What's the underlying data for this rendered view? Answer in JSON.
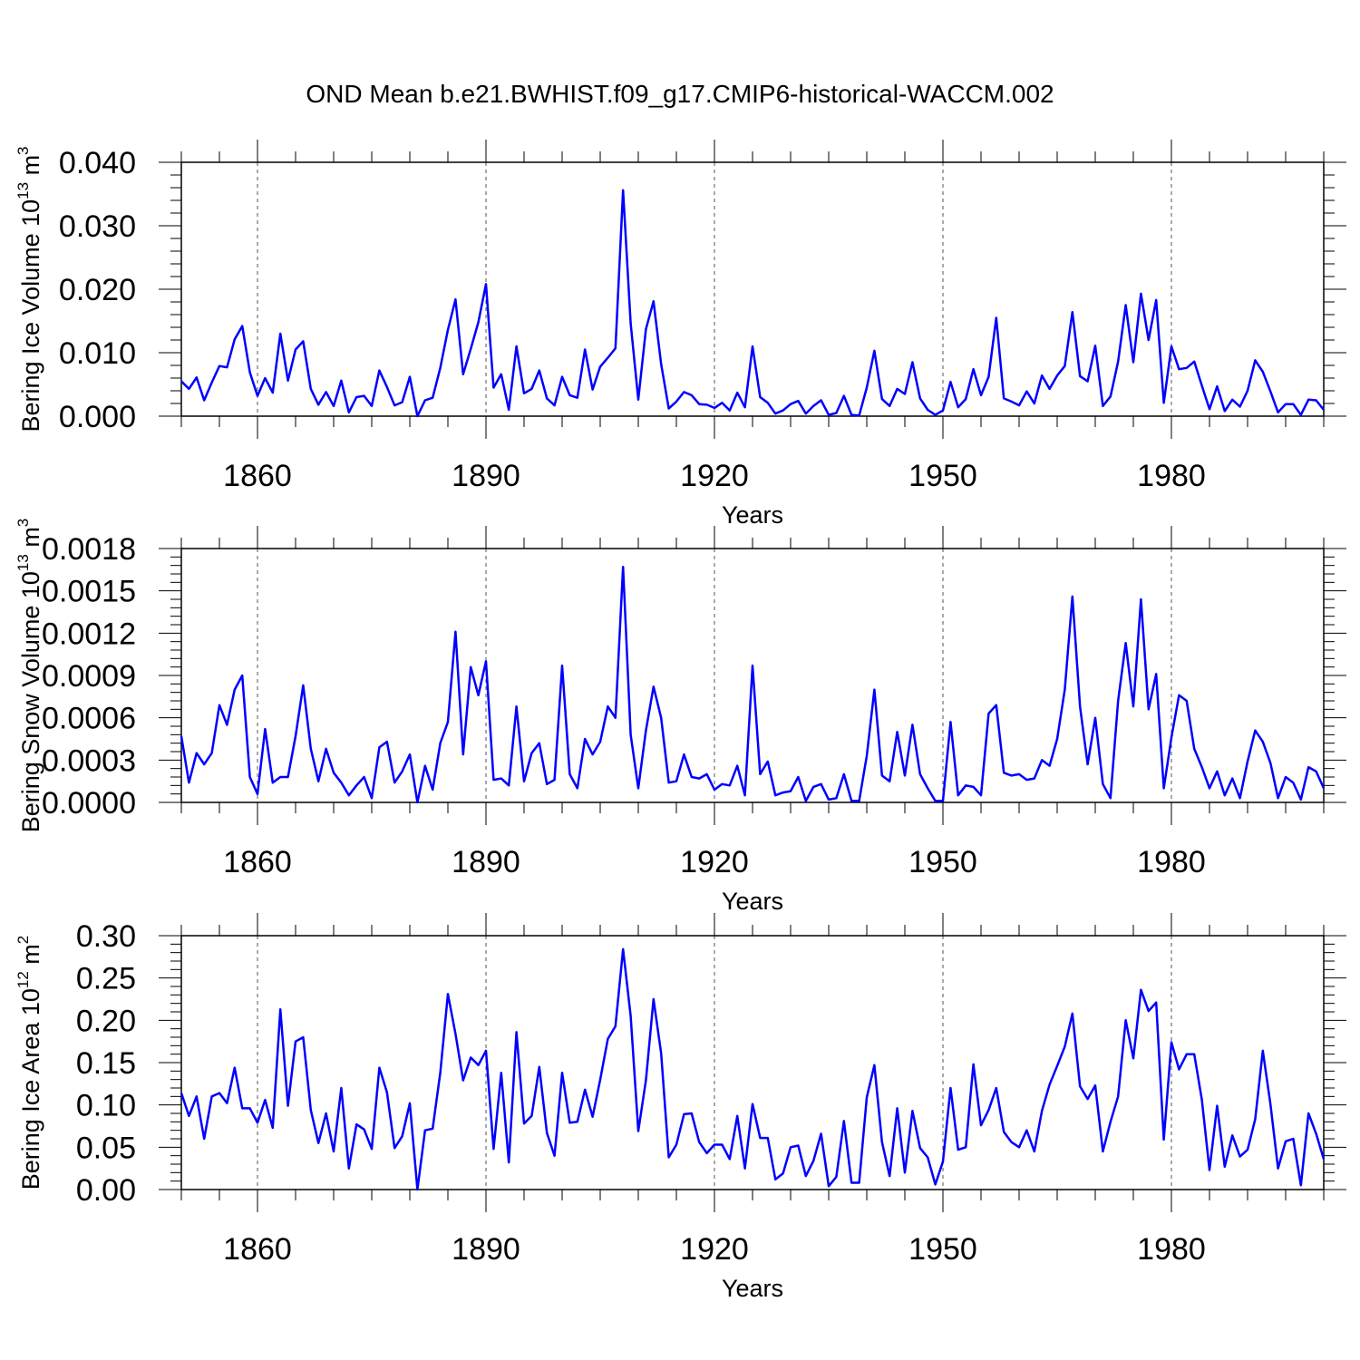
{
  "title": "OND Mean b.e21.BWHIST.f09_g17.CMIP6-historical-WACCM.002",
  "colors": {
    "line": "#0000ff",
    "axis": "#000000",
    "grid": "#555555"
  },
  "chart_data": [
    {
      "type": "line",
      "title": "OND Mean b.e21.BWHIST.f09_g17.CMIP6-historical-WACCM.002",
      "xlabel": "Years",
      "ylabel": {
        "main": "Bering Ice Volume 10",
        "sup": "13",
        "unit": " m",
        "unit_sup": "3"
      },
      "xlim": [
        1850,
        2000
      ],
      "ylim": [
        0,
        0.04
      ],
      "xticks": [
        1860,
        1890,
        1920,
        1950,
        1980
      ],
      "xtick_labels": [
        "1860",
        "1890",
        "1920",
        "1950",
        "1980"
      ],
      "yticks": [
        0,
        0.01,
        0.02,
        0.03,
        0.04
      ],
      "ytick_labels": [
        "0.000",
        "0.010",
        "0.020",
        "0.030",
        "0.040"
      ],
      "grid": "vertical dashed at major x ticks",
      "x_start": 1850,
      "series": [
        {
          "name": "Bering Ice Volume",
          "values": [
            0.0055,
            0.0043,
            0.0061,
            0.0025,
            0.0053,
            0.0079,
            0.0077,
            0.0121,
            0.0142,
            0.0069,
            0.0032,
            0.006,
            0.0037,
            0.013,
            0.0056,
            0.0105,
            0.0118,
            0.0043,
            0.0018,
            0.0038,
            0.0016,
            0.0056,
            0.0006,
            0.003,
            0.0032,
            0.0016,
            0.0072,
            0.0046,
            0.0017,
            0.0022,
            0.0062,
            0.0,
            0.0025,
            0.0029,
            0.0076,
            0.0136,
            0.0184,
            0.0066,
            0.0106,
            0.0148,
            0.0208,
            0.0045,
            0.0066,
            0.001,
            0.011,
            0.0036,
            0.0043,
            0.0072,
            0.0028,
            0.0017,
            0.0062,
            0.0033,
            0.0029,
            0.0105,
            0.0042,
            0.0078,
            0.0092,
            0.0107,
            0.0356,
            0.0146,
            0.0026,
            0.0137,
            0.0181,
            0.0082,
            0.0012,
            0.0023,
            0.0038,
            0.0033,
            0.0019,
            0.0018,
            0.0013,
            0.0021,
            0.0009,
            0.0037,
            0.0014,
            0.011,
            0.003,
            0.0021,
            0.0004,
            0.0009,
            0.0019,
            0.0024,
            0.0004,
            0.0016,
            0.0025,
            0.0002,
            0.0005,
            0.0032,
            0.0002,
            0.0001,
            0.0045,
            0.0103,
            0.0027,
            0.0016,
            0.0043,
            0.0035,
            0.0085,
            0.0028,
            0.001,
            0.0002,
            0.0009,
            0.0054,
            0.0014,
            0.0027,
            0.0074,
            0.0033,
            0.0062,
            0.0155,
            0.0028,
            0.0023,
            0.0017,
            0.0039,
            0.002,
            0.0064,
            0.0043,
            0.0064,
            0.0079,
            0.0164,
            0.0063,
            0.0055,
            0.0111,
            0.0016,
            0.0031,
            0.0086,
            0.0175,
            0.0085,
            0.0193,
            0.012,
            0.0183,
            0.0021,
            0.011,
            0.0074,
            0.0076,
            0.0086,
            0.0048,
            0.0011,
            0.0047,
            0.0008,
            0.0026,
            0.0015,
            0.004,
            0.0088,
            0.007,
            0.0039,
            0.0006,
            0.0019,
            0.0019,
            0.0002,
            0.0026,
            0.0025,
            0.001
          ]
        }
      ]
    },
    {
      "type": "line",
      "xlabel": "Years",
      "ylabel": {
        "main": "Bering Snow Volume 10",
        "sup": "13",
        "unit": " m",
        "unit_sup": "3"
      },
      "xlim": [
        1850,
        2000
      ],
      "ylim": [
        0,
        0.0018
      ],
      "xticks": [
        1860,
        1890,
        1920,
        1950,
        1980
      ],
      "xtick_labels": [
        "1860",
        "1890",
        "1920",
        "1950",
        "1980"
      ],
      "yticks": [
        0,
        0.0003,
        0.0006,
        0.0009,
        0.0012,
        0.0015,
        0.0018
      ],
      "ytick_labels": [
        "0.0000",
        "0.0003",
        "0.0006",
        "0.0009",
        "0.0012",
        "0.0015",
        "0.0018"
      ],
      "grid": "vertical dashed at major x ticks",
      "x_start": 1850,
      "series": [
        {
          "name": "Bering Snow Volume",
          "values": [
            0.00047,
            0.00014,
            0.00035,
            0.00027,
            0.00035,
            0.00069,
            0.00055,
            0.0008,
            0.0009,
            0.00018,
            6e-05,
            0.00052,
            0.00014,
            0.00018,
            0.00018,
            0.00047,
            0.00083,
            0.00038,
            0.00015,
            0.00038,
            0.00021,
            0.00014,
            5e-05,
            0.00012,
            0.00018,
            3e-05,
            0.00039,
            0.00043,
            0.00014,
            0.00022,
            0.00034,
            0.0,
            0.00026,
            9e-05,
            0.00042,
            0.00057,
            0.00121,
            0.00034,
            0.00096,
            0.00076,
            0.001,
            0.00016,
            0.00017,
            0.00012,
            0.00068,
            0.00015,
            0.00035,
            0.00042,
            0.00013,
            0.00016,
            0.00097,
            0.0002,
            0.0001,
            0.00045,
            0.00034,
            0.00043,
            0.00068,
            0.0006,
            0.00167,
            0.00048,
            0.0001,
            0.00051,
            0.00082,
            0.0006,
            0.00014,
            0.00015,
            0.00034,
            0.00018,
            0.00017,
            0.0002,
            9e-05,
            0.00013,
            0.00012,
            0.00026,
            5e-05,
            0.00097,
            0.0002,
            0.00029,
            5e-05,
            7e-05,
            8e-05,
            0.00018,
            1e-05,
            0.00011,
            0.00013,
            2e-05,
            3e-05,
            0.0002,
            1e-05,
            1e-05,
            0.00033,
            0.0008,
            0.00019,
            0.00015,
            0.0005,
            0.00019,
            0.00055,
            0.0002,
            0.0001,
            1e-05,
            1e-05,
            0.00057,
            5e-05,
            0.00012,
            0.00011,
            5e-05,
            0.00063,
            0.00069,
            0.00021,
            0.00019,
            0.0002,
            0.00016,
            0.00017,
            0.0003,
            0.00026,
            0.00045,
            0.0008,
            0.00146,
            0.00068,
            0.00027,
            0.0006,
            0.00013,
            3e-05,
            0.00072,
            0.00113,
            0.00068,
            0.00144,
            0.00066,
            0.00091,
            0.0001,
            0.00046,
            0.00076,
            0.00072,
            0.00038,
            0.00025,
            0.0001,
            0.00022,
            5e-05,
            0.00017,
            3e-05,
            0.00029,
            0.00051,
            0.00043,
            0.00028,
            3e-05,
            0.00018,
            0.00014,
            2e-05,
            0.00025,
            0.00022,
            0.0001
          ]
        }
      ]
    },
    {
      "type": "line",
      "xlabel": "Years",
      "ylabel": {
        "main": "Bering Ice Area 10",
        "sup": "12",
        "unit": " m",
        "unit_sup": "2"
      },
      "xlim": [
        1850,
        2000
      ],
      "ylim": [
        0,
        0.3
      ],
      "xticks": [
        1860,
        1890,
        1920,
        1950,
        1980
      ],
      "xtick_labels": [
        "1860",
        "1890",
        "1920",
        "1950",
        "1980"
      ],
      "yticks": [
        0,
        0.05,
        0.1,
        0.15,
        0.2,
        0.25,
        0.3
      ],
      "ytick_labels": [
        "0.00",
        "0.05",
        "0.10",
        "0.15",
        "0.20",
        "0.25",
        "0.30"
      ],
      "grid": "vertical dashed at major x ticks",
      "x_start": 1850,
      "series": [
        {
          "name": "Bering Ice Area",
          "values": [
            0.114,
            0.087,
            0.11,
            0.06,
            0.11,
            0.114,
            0.102,
            0.144,
            0.096,
            0.096,
            0.079,
            0.106,
            0.073,
            0.213,
            0.099,
            0.175,
            0.18,
            0.094,
            0.055,
            0.09,
            0.045,
            0.12,
            0.025,
            0.077,
            0.071,
            0.048,
            0.144,
            0.115,
            0.049,
            0.063,
            0.102,
            0.0,
            0.07,
            0.072,
            0.138,
            0.231,
            0.184,
            0.129,
            0.156,
            0.147,
            0.164,
            0.048,
            0.138,
            0.032,
            0.186,
            0.078,
            0.087,
            0.145,
            0.067,
            0.04,
            0.138,
            0.079,
            0.08,
            0.118,
            0.086,
            0.13,
            0.178,
            0.193,
            0.284,
            0.205,
            0.069,
            0.129,
            0.225,
            0.161,
            0.038,
            0.053,
            0.089,
            0.09,
            0.056,
            0.043,
            0.053,
            0.053,
            0.036,
            0.087,
            0.025,
            0.101,
            0.061,
            0.061,
            0.012,
            0.019,
            0.05,
            0.052,
            0.016,
            0.034,
            0.066,
            0.004,
            0.015,
            0.081,
            0.008,
            0.008,
            0.109,
            0.147,
            0.056,
            0.016,
            0.096,
            0.02,
            0.093,
            0.049,
            0.038,
            0.006,
            0.033,
            0.12,
            0.047,
            0.05,
            0.148,
            0.076,
            0.094,
            0.12,
            0.068,
            0.056,
            0.05,
            0.07,
            0.045,
            0.093,
            0.124,
            0.146,
            0.169,
            0.208,
            0.122,
            0.107,
            0.123,
            0.045,
            0.08,
            0.11,
            0.2,
            0.155,
            0.236,
            0.211,
            0.221,
            0.059,
            0.174,
            0.142,
            0.16,
            0.16,
            0.106,
            0.023,
            0.099,
            0.027,
            0.064,
            0.039,
            0.047,
            0.083,
            0.164,
            0.101,
            0.025,
            0.057,
            0.06,
            0.005,
            0.09,
            0.066,
            0.036
          ]
        }
      ]
    }
  ]
}
